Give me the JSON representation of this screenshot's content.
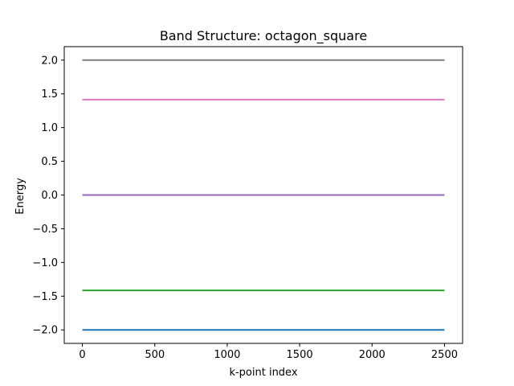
{
  "chart_data": {
    "type": "line",
    "title": "Band Structure: octagon_square",
    "xlabel": "k-point index",
    "ylabel": "Energy",
    "xlim": [
      -125,
      2625
    ],
    "ylim": [
      -2.2,
      2.2
    ],
    "x_ticks": [
      0,
      500,
      1000,
      1500,
      2000,
      2500
    ],
    "x_tick_labels": [
      "0",
      "500",
      "1000",
      "1500",
      "2000",
      "2500"
    ],
    "y_ticks": [
      2.0,
      1.5,
      1.0,
      0.5,
      0.0,
      -0.5,
      -1.0,
      -1.5,
      -2.0
    ],
    "y_tick_labels": [
      "2.0",
      "1.5",
      "1.0",
      "0.5",
      "0.0",
      "−0.5",
      "−1.0",
      "−1.5",
      "−2.0"
    ],
    "grid": false,
    "legend": "none",
    "x_range": [
      0,
      2500
    ],
    "series": [
      {
        "values": [
          -2.0,
          -2.0
        ],
        "color": "#1f77b4"
      },
      {
        "values": [
          -1.414,
          -1.414
        ],
        "color": "#2ca02c"
      },
      {
        "values": [
          0.0,
          0.0
        ],
        "color": "#d62728"
      },
      {
        "values": [
          0.0,
          0.0
        ],
        "color": "#9467bd"
      },
      {
        "values": [
          1.414,
          1.414
        ],
        "color": "#e377c2"
      },
      {
        "values": [
          2.0,
          2.0
        ],
        "color": "#7f7f7f"
      }
    ]
  }
}
